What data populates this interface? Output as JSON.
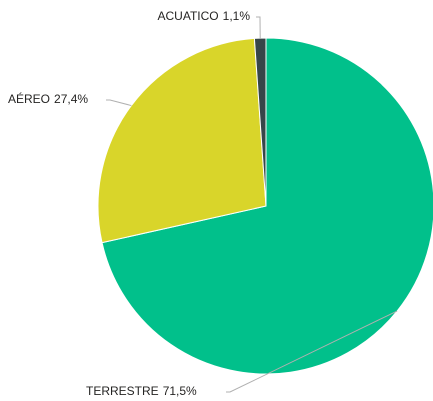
{
  "chart_data": {
    "type": "pie",
    "categories": [
      "TERRESTRE",
      "AÉREO",
      "ACUATICO"
    ],
    "values": [
      71.5,
      27.4,
      1.1
    ],
    "value_labels": [
      "71,5%",
      "27,4%",
      "1,1%"
    ],
    "colors": [
      "#01c08b",
      "#d9d52a",
      "#374649"
    ]
  }
}
